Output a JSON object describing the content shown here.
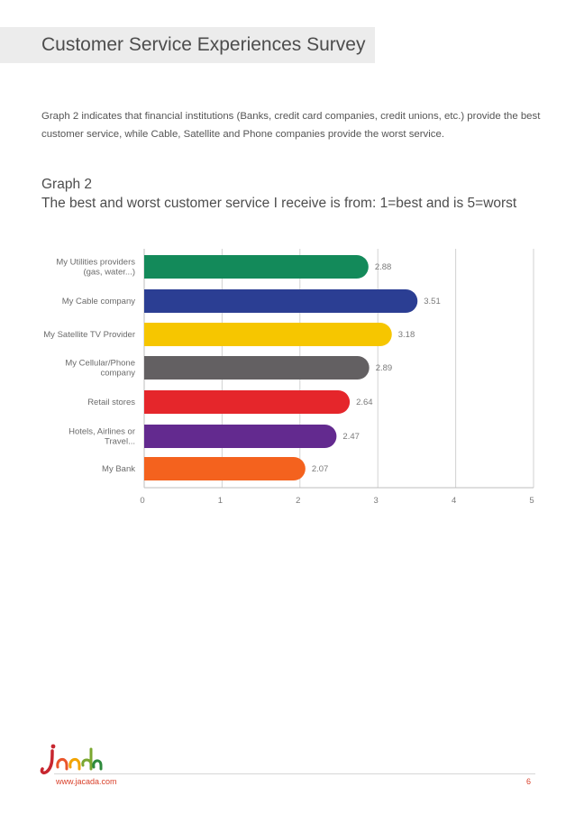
{
  "page": {
    "title": "Customer Service Experiences Survey",
    "intro": "Graph 2 indicates that financial institutions (Banks, credit card companies, credit unions, etc.) provide the best customer service, while Cable, Satellite and Phone companies provide the worst service.",
    "graph_label": "Graph 2",
    "graph_caption": "The best and worst customer service I receive is from: 1=best and is 5=worst"
  },
  "chart_data": {
    "type": "bar",
    "orientation": "horizontal",
    "title": "",
    "xlabel": "",
    "ylabel": "",
    "xlim": [
      0,
      5
    ],
    "ticks": [
      0,
      1,
      2,
      3,
      4,
      5
    ],
    "grid": true,
    "categories": [
      [
        "My Utilities providers",
        "(gas, water...)"
      ],
      [
        "My Cable company"
      ],
      [
        "My Satellite TV Provider"
      ],
      [
        "My Cellular/Phone",
        "company"
      ],
      [
        "Retail stores"
      ],
      [
        "Hotels, Airlines or",
        "Travel..."
      ],
      [
        "My Bank"
      ]
    ],
    "values": [
      2.88,
      3.51,
      3.18,
      2.89,
      2.64,
      2.47,
      2.07
    ],
    "value_labels": [
      "2.88",
      "3.51",
      "3.18",
      "2.89",
      "2.64",
      "2.47",
      "2.07"
    ],
    "colors": [
      "#138a5a",
      "#2b3e93",
      "#f6c600",
      "#636062",
      "#e5262b",
      "#632a8f",
      "#f4621e"
    ]
  },
  "footer": {
    "logo_text": "jacada",
    "url": "www.jacada.com",
    "page_number": "6"
  }
}
